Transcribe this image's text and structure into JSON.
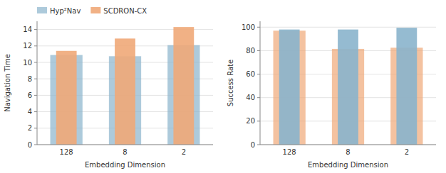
{
  "chart_data": [
    {
      "type": "bar",
      "categories": [
        "128",
        "8",
        "2"
      ],
      "series": [
        {
          "name": "Hyp²Nav",
          "color": "#8ab4cc",
          "values": [
            10.9,
            10.75,
            12.1
          ]
        },
        {
          "name": "SCDRON-CX",
          "color": "#f0a878",
          "values": [
            11.4,
            12.9,
            14.3
          ]
        }
      ],
      "xlabel": "Embedding Dimension",
      "ylabel": "Navigation Time",
      "ylim": [
        0,
        15
      ],
      "yticks": [
        0,
        2,
        4,
        6,
        8,
        10,
        12,
        14
      ],
      "grid": true,
      "legend": "upper left"
    },
    {
      "type": "bar",
      "categories": [
        "128",
        "8",
        "2"
      ],
      "series": [
        {
          "name": "SCDRON-CX",
          "color": "#f0a878",
          "values": [
            97.0,
            81.5,
            82.5
          ]
        },
        {
          "name": "Hyp²Nav",
          "color": "#8ab4cc",
          "values": [
            98.0,
            98.0,
            99.5
          ]
        }
      ],
      "xlabel": "Embedding Dimension",
      "ylabel": "Success Rate",
      "ylim": [
        0,
        105
      ],
      "yticks": [
        0,
        20,
        40,
        60,
        80,
        100
      ],
      "grid": true
    }
  ]
}
